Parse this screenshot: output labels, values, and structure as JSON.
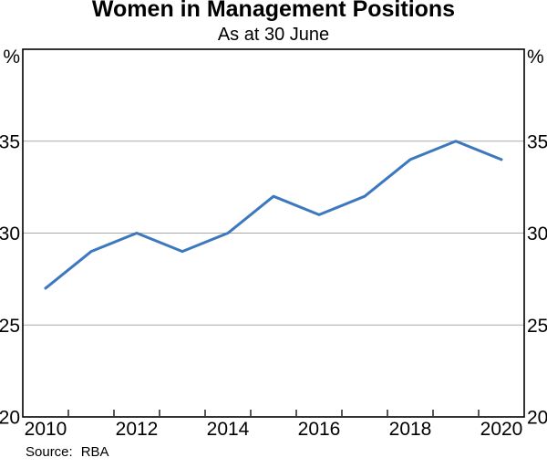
{
  "title": "Women in Management Positions",
  "subtitle": "As at 30 June",
  "axes": {
    "unit_left": "%",
    "unit_right": "%"
  },
  "footer": {
    "source_label": "Source:",
    "source_value": "RBA"
  },
  "colors": {
    "line": "#3c78be",
    "grid": "#aaaaaa",
    "frame": "#000000",
    "text": "#000000",
    "background": "#ffffff"
  },
  "chart_data": {
    "type": "line",
    "title": "Women in Management Positions",
    "subtitle": "As at 30 June",
    "unit": "%",
    "x": [
      2010,
      2011,
      2012,
      2013,
      2014,
      2015,
      2016,
      2017,
      2018,
      2019,
      2020
    ],
    "series": [
      {
        "name": "Women in management positions",
        "values": [
          27,
          29,
          30,
          29,
          30,
          32,
          31,
          32,
          34,
          35,
          34
        ]
      }
    ],
    "xlim": [
      2009.5,
      2020.5
    ],
    "ylim": [
      20,
      40
    ],
    "yticks": [
      20,
      25,
      30,
      35
    ],
    "gridlines": [
      25,
      30,
      35
    ],
    "xtick_labels": [
      2010,
      2012,
      2014,
      2016,
      2018,
      2020
    ],
    "minor_xticks": [
      2010.5,
      2011.5,
      2012.5,
      2013.5,
      2014.5,
      2015.5,
      2016.5,
      2017.5,
      2018.5,
      2019.5
    ],
    "grid": "horizontal",
    "legend": "none",
    "source": "RBA"
  }
}
